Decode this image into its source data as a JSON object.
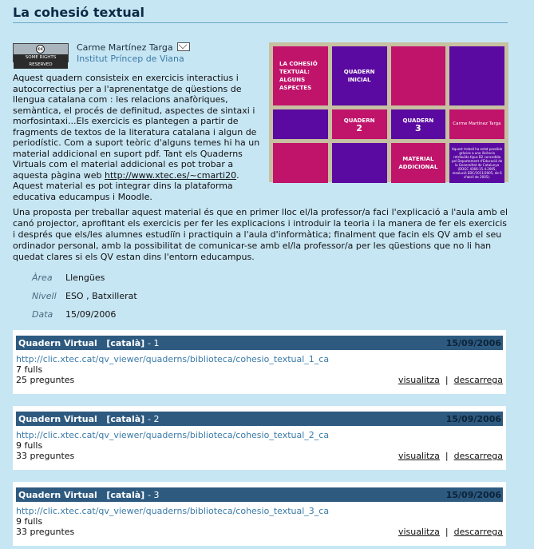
{
  "page_title": "La cohesió textual",
  "license_badge": "SOME RIGHTS RESERVED",
  "author": {
    "name": "Carme Martínez Targa",
    "institute": "Institut Príncep de Viana"
  },
  "description": {
    "text": "Aquest quadern consisteix en exercicis interactius i autocorrectius per a l'aprenentatge de qüestions de llengua catalana com : les relacions anafòriques, semàntica, el procés de definitud, aspectes de sintaxi i morfosintaxi...Els exercicis es plantegen a partir de fragments de textos de la literatura catalana i algun de periodístic. Com a suport teòric d'alguns temes hi ha un material addicional en suport pdf. Tant els Quaderns Virtuals com el material addicional es pot trobar a aquesta pàgina web ",
    "link": "http://www.xtec.es/~cmarti20",
    "after": ". Aquest material es pot integrar dins la plataforma educativa educampus i Moodle."
  },
  "cover": {
    "cells": [
      {
        "text": "LA COHESIÓ TEXTUAL: ALGUNS ASPECTES",
        "color": "mag",
        "kind": "left"
      },
      {
        "text": "QUADERN INICIAL",
        "color": "pur",
        "kind": ""
      },
      {
        "text": "",
        "color": "mag",
        "kind": ""
      },
      {
        "text": "",
        "color": "pur",
        "kind": ""
      },
      {
        "text": "",
        "color": "pur",
        "kind": ""
      },
      {
        "text": "QUADERN 2",
        "color": "mag",
        "kind": ""
      },
      {
        "text": "QUADERN 3",
        "color": "pur",
        "kind": ""
      },
      {
        "text": "Carme Martínez Targa",
        "color": "mag",
        "kind": "authorcell"
      },
      {
        "text": "",
        "color": "mag",
        "kind": ""
      },
      {
        "text": "",
        "color": "pur",
        "kind": ""
      },
      {
        "text": "MATERIAL ADDICIONAL",
        "color": "mag",
        "kind": ""
      },
      {
        "text": "Aquest treball ha estat possible gràcies a una llicència retribuïda tipus B2 concedida pel Departament d'Educació de la Generalitat de Catalunya (DOGC 4366-15.4.2005, resolució EDC/1011/2005, de 6 d'abril de 2005).",
        "color": "pur",
        "kind": "tiny"
      }
    ]
  },
  "paragraph2": "Una proposta per treballar aquest material és que en primer lloc el/la professor/a faci l'explicació a l'aula amb el canó projector, aprofitant els exercicis per fer les explicacions i introduir la teoria i la manera de fer els exercicis i després que els/les alumnes estudiïn i practiquin a l'aula d'informàtica; finalment que facin els QV amb el seu ordinador personal, amb la possibilitat de comunicar-se amb el/la professor/a per les qüestions que no li han quedat clares si els QV estan dins l'entorn educampus.",
  "meta": [
    {
      "label": "Àrea",
      "value": "Llengües"
    },
    {
      "label": "Nivell",
      "value": "ESO , Batxillerat"
    },
    {
      "label": "Data",
      "value": "15/09/2006"
    }
  ],
  "quaderns": [
    {
      "title": "Quadern Virtual",
      "lang": "[català]",
      "num": "- 1",
      "date": "15/09/2006",
      "url": "http://clic.xtec.cat/qv_viewer/quaderns/biblioteca/cohesio_textual_1_ca",
      "fulls": "7 fulls",
      "preguntes": "25 preguntes"
    },
    {
      "title": "Quadern Virtual",
      "lang": "[català]",
      "num": "- 2",
      "date": "15/09/2006",
      "url": "http://clic.xtec.cat/qv_viewer/quaderns/biblioteca/cohesio_textual_2_ca",
      "fulls": "9 fulls",
      "preguntes": "33 preguntes"
    },
    {
      "title": "Quadern Virtual",
      "lang": "[català]",
      "num": "- 3",
      "date": "15/09/2006",
      "url": "http://clic.xtec.cat/qv_viewer/quaderns/biblioteca/cohesio_textual_3_ca",
      "fulls": "9 fulls",
      "preguntes": "33 preguntes"
    }
  ],
  "actions": {
    "view": "visualitza",
    "separator": "|",
    "download": "descarrega"
  }
}
